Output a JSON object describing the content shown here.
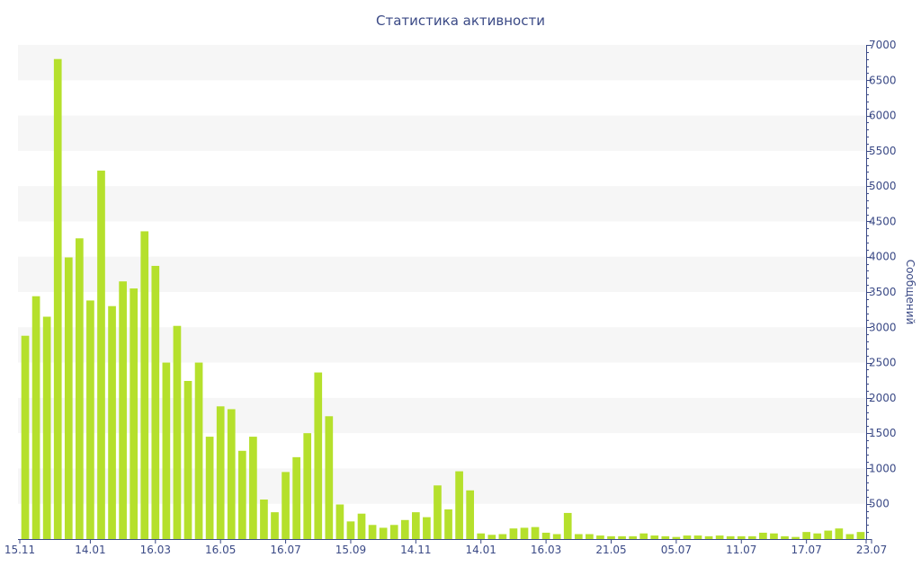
{
  "chart_data": {
    "type": "bar",
    "title": "Статистика активности",
    "ylabel": "Сообщений",
    "xlabel": "",
    "ylim": [
      0,
      7000
    ],
    "y_ticks": [
      500,
      1000,
      1500,
      2000,
      2500,
      3000,
      3500,
      4000,
      4500,
      5000,
      5500,
      6000,
      6500,
      7000
    ],
    "x_tick_labels": [
      {
        "label": "15.11",
        "index": 0
      },
      {
        "label": "14.01",
        "index": 6
      },
      {
        "label": "16.03",
        "index": 12
      },
      {
        "label": "16.05",
        "index": 18
      },
      {
        "label": "16.07",
        "index": 24
      },
      {
        "label": "15.09",
        "index": 30
      },
      {
        "label": "14.11",
        "index": 36
      },
      {
        "label": "14.01",
        "index": 42
      },
      {
        "label": "16.03",
        "index": 48
      },
      {
        "label": "21.05",
        "index": 54
      },
      {
        "label": "05.07",
        "index": 60
      },
      {
        "label": "11.07",
        "index": 66
      },
      {
        "label": "17.07",
        "index": 72
      },
      {
        "label": "23.07",
        "index": 78
      }
    ],
    "grid": "alternating horizontal bands",
    "y_axis_side": "right",
    "bar_color": "#b5e02c",
    "values": [
      2880,
      3440,
      3150,
      6800,
      3990,
      4260,
      3380,
      5220,
      3300,
      3650,
      3550,
      4360,
      3870,
      2500,
      3020,
      2240,
      2500,
      1450,
      1880,
      1840,
      1250,
      1450,
      560,
      380,
      950,
      1160,
      1500,
      2360,
      1740,
      490,
      250,
      360,
      200,
      160,
      200,
      270,
      380,
      310,
      760,
      420,
      960,
      690,
      80,
      60,
      70,
      150,
      160,
      170,
      90,
      70,
      370,
      70,
      70,
      50,
      40,
      40,
      40,
      80,
      50,
      40,
      30,
      50,
      50,
      40,
      50,
      40,
      40,
      40,
      90,
      80,
      40,
      30,
      100,
      80,
      120,
      150,
      70,
      100
    ]
  }
}
